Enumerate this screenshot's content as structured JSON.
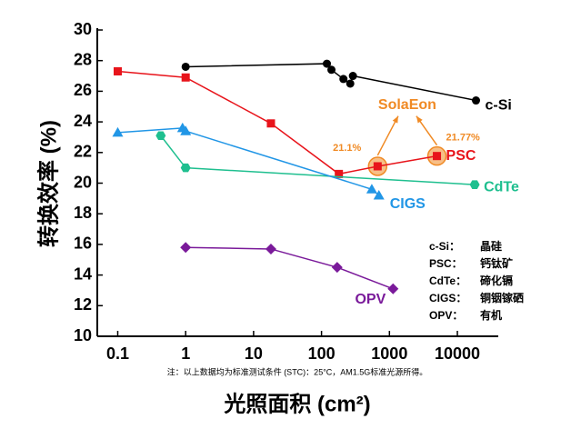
{
  "chart_data": {
    "type": "line",
    "x_label": "光照面积 (cm²)",
    "y_label": "转换效率 (%)",
    "xscale": "log",
    "xlim": [
      0.05,
      40000
    ],
    "xticks": [
      0.1,
      1,
      10,
      100,
      1000,
      10000
    ],
    "ylim": [
      10,
      30
    ],
    "yticks": [
      10,
      12,
      14,
      16,
      18,
      20,
      22,
      24,
      26,
      28,
      30
    ],
    "series": [
      {
        "name": "c-Si",
        "color": "#000000",
        "marker": "circle",
        "x": [
          1,
          120,
          140,
          210,
          265,
          290,
          18800
        ],
        "values": [
          27.6,
          27.8,
          27.4,
          26.8,
          26.5,
          27.0,
          25.4
        ]
      },
      {
        "name": "PSC",
        "color": "#e8141b",
        "marker": "square",
        "x": [
          0.1,
          1,
          18,
          180,
          670,
          5000
        ],
        "values": [
          27.3,
          26.9,
          23.9,
          20.6,
          21.1,
          21.77
        ],
        "value_labels": [
          null,
          null,
          null,
          null,
          "21.1%",
          "21.77%"
        ]
      },
      {
        "name": "CdTe",
        "color": "#1fbf8f",
        "marker": "hexagon",
        "x": [
          0.43,
          1,
          18000
        ],
        "values": [
          23.1,
          21.0,
          19.9
        ]
      },
      {
        "name": "CIGS",
        "color": "#2196e6",
        "marker": "triangle",
        "x": [
          0.1,
          0.9,
          1,
          550,
          700
        ],
        "values": [
          23.3,
          23.6,
          23.4,
          19.6,
          19.2
        ]
      },
      {
        "name": "OPV",
        "color": "#7a1a9a",
        "marker": "diamond",
        "x": [
          1,
          18,
          170,
          1130
        ],
        "values": [
          15.8,
          15.7,
          14.5,
          13.1
        ]
      }
    ],
    "highlight": {
      "text": "SolaEon",
      "color": "#f08a24",
      "series": 1,
      "points": [
        4,
        5
      ]
    },
    "legend_notes": [
      {
        "label": "c-Si：",
        "text": "晶硅"
      },
      {
        "label": "PSC：",
        "text": "钙钛矿"
      },
      {
        "label": "CdTe：",
        "text": "碲化镉"
      },
      {
        "label": "CIGS：",
        "text": "铜铟镓硒"
      },
      {
        "label": "OPV：",
        "text": "有机"
      }
    ],
    "note": "注：以上数据均为标准测试条件 (STC)：25°C，AM1.5G标准光源所得。"
  }
}
